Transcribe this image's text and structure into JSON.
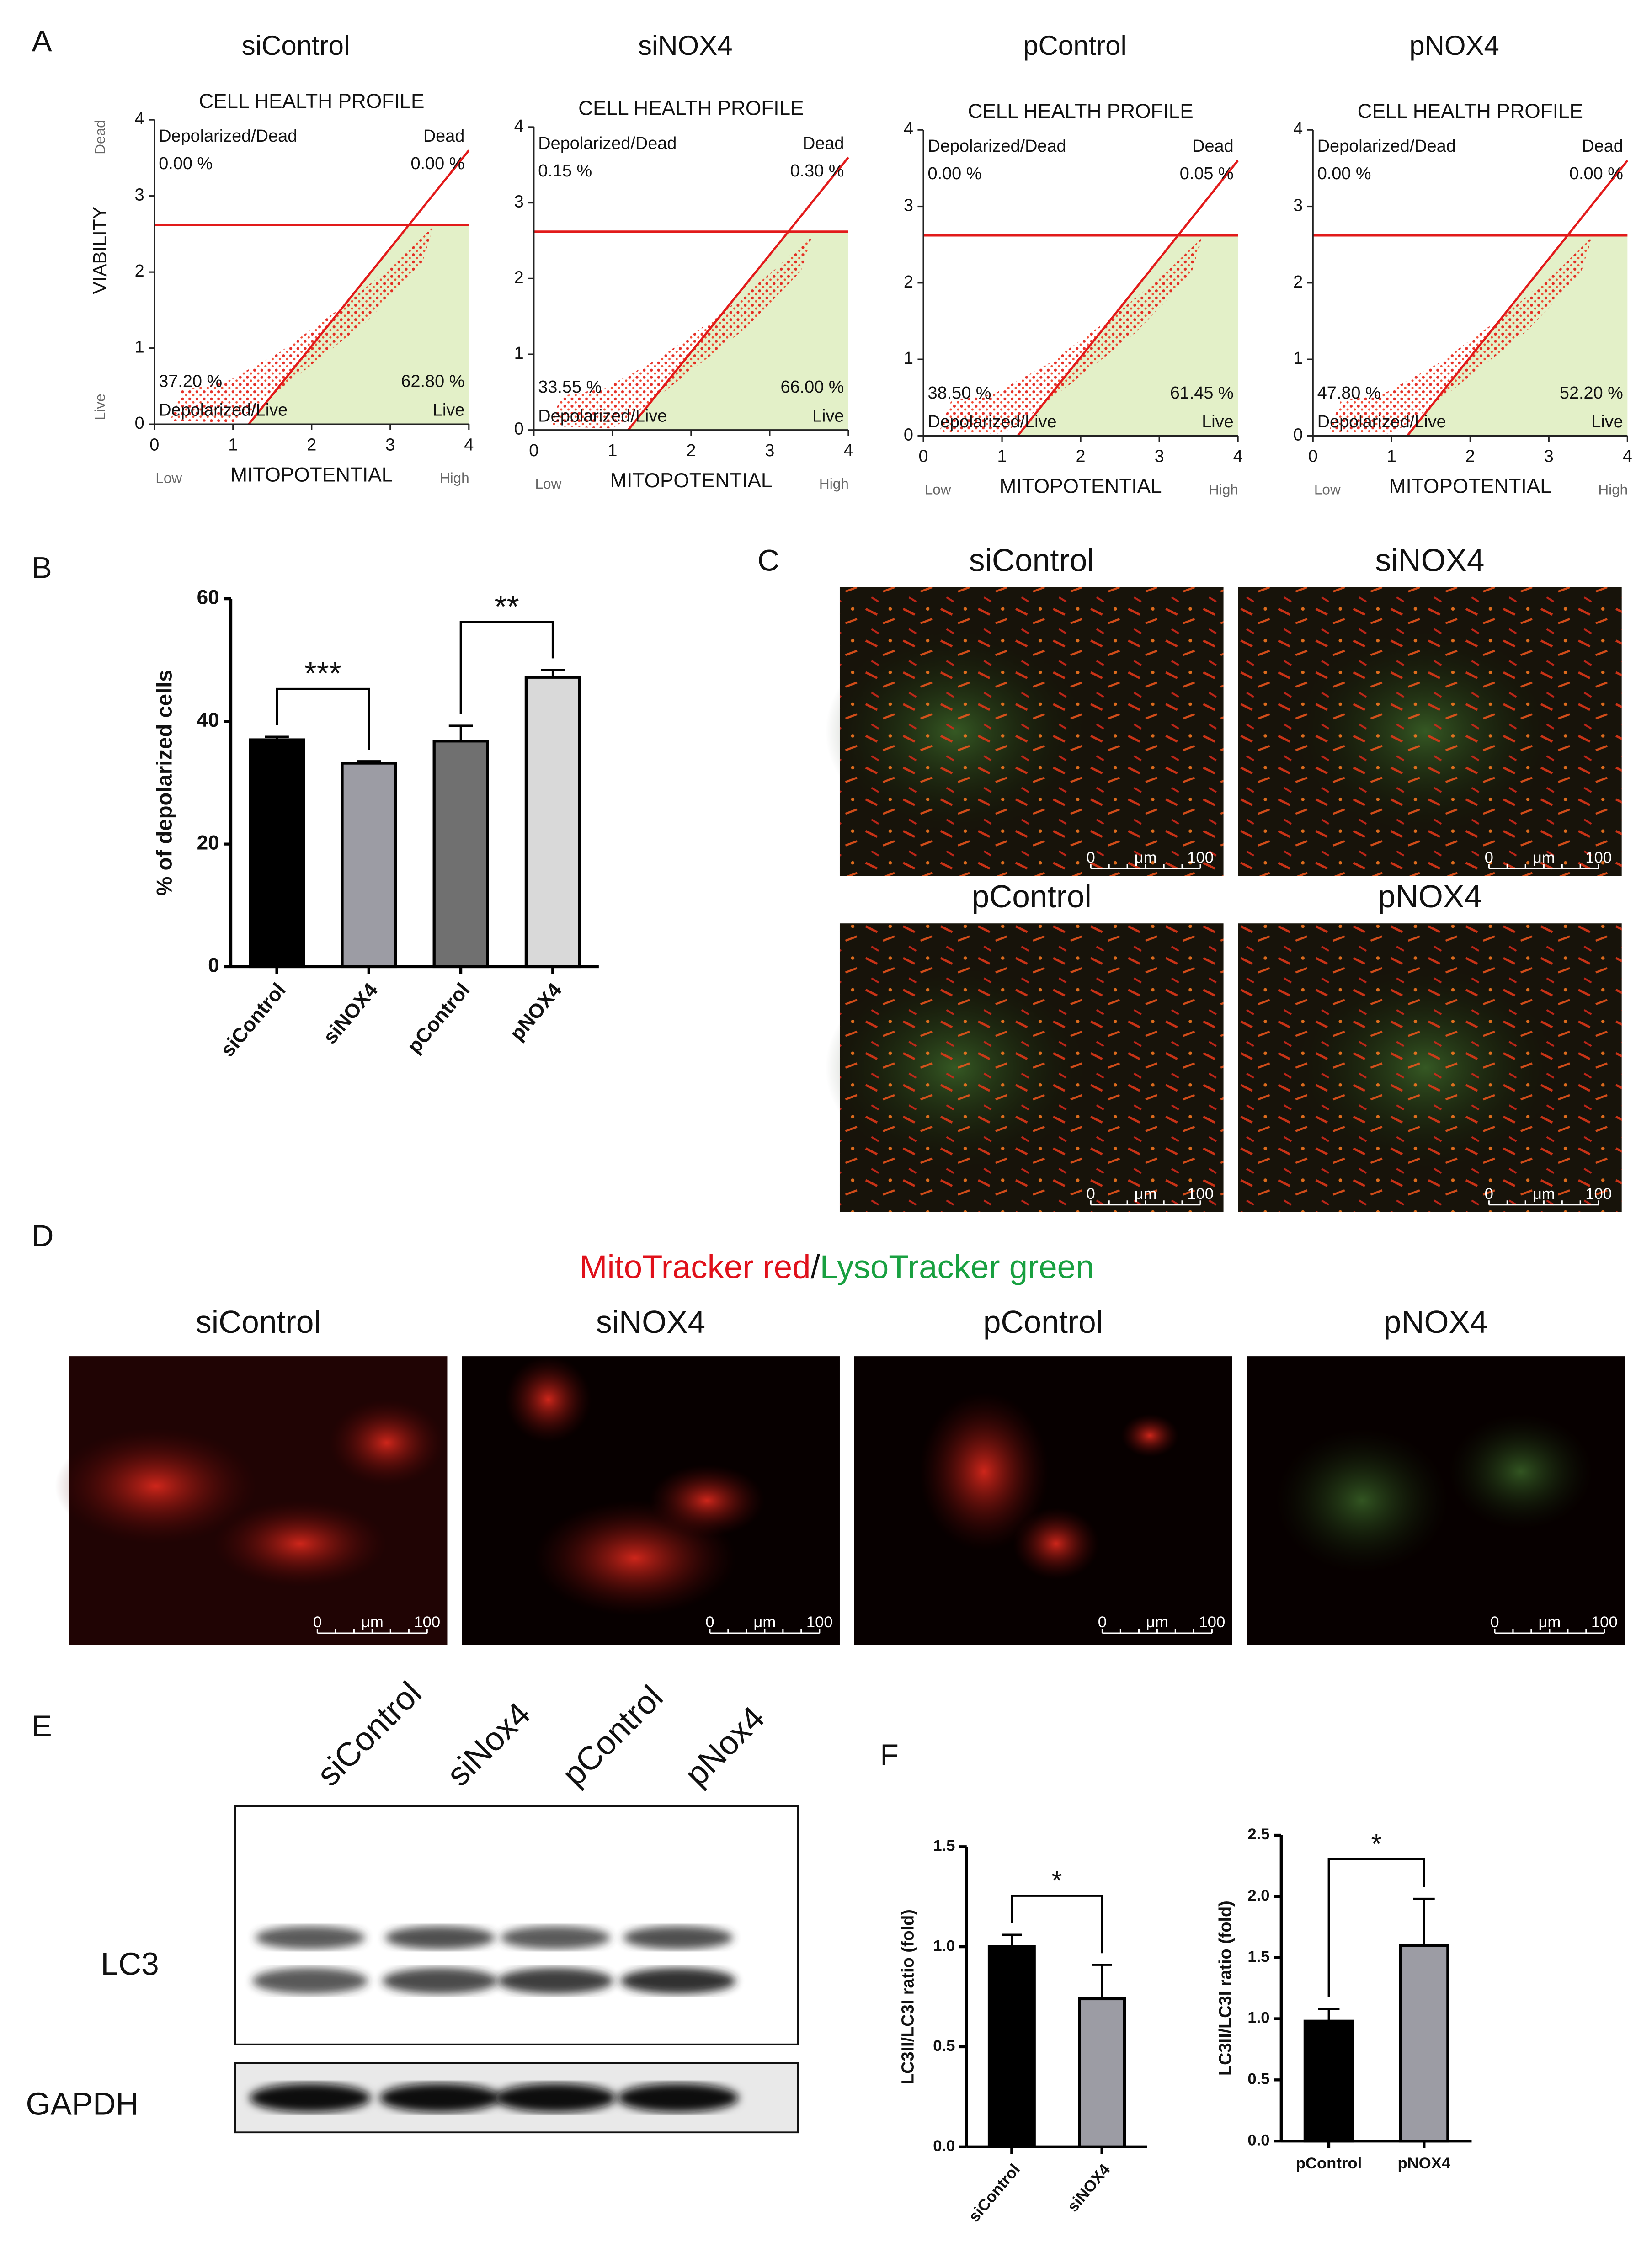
{
  "panel_labels": [
    "A",
    "B",
    "C",
    "D",
    "E",
    "F"
  ],
  "flow_plots": [
    {
      "column_title": "siControl",
      "plot_title": "CELL HEALTH PROFILE",
      "x_label": "MITOPOTENTIAL",
      "x_low": "Low",
      "x_high": "High",
      "y_label": "VIABILITY",
      "y_dead": "Dead",
      "y_live": "Live",
      "xlim": [
        0,
        4
      ],
      "ylim": [
        0,
        4
      ],
      "xticks": [
        0,
        1,
        2,
        3,
        4
      ],
      "yticks": [
        0,
        1,
        2,
        3,
        4
      ],
      "quadrants": [
        {
          "name": "Depolarized/Dead",
          "percent": "0.00 %"
        },
        {
          "name": "Dead",
          "percent": "0.00 %"
        },
        {
          "name": "Depolarized/Live",
          "percent": "37.20 %"
        },
        {
          "name": "Live",
          "percent": "62.80 %"
        }
      ]
    },
    {
      "column_title": "siNOX4",
      "plot_title": "CELL HEALTH PROFILE",
      "x_label": "MITOPOTENTIAL",
      "x_low": "Low",
      "x_high": "High",
      "xlim": [
        0,
        4
      ],
      "ylim": [
        0,
        4
      ],
      "xticks": [
        0,
        1,
        2,
        3,
        4
      ],
      "yticks": [
        0,
        1,
        2,
        3,
        4
      ],
      "quadrants": [
        {
          "name": "Depolarized/Dead",
          "percent": "0.15 %"
        },
        {
          "name": "Dead",
          "percent": "0.30 %"
        },
        {
          "name": "Depolarized/Live",
          "percent": "33.55 %"
        },
        {
          "name": "Live",
          "percent": "66.00 %"
        }
      ]
    },
    {
      "column_title": "pControl",
      "plot_title": "CELL HEALTH PROFILE",
      "x_label": "MITOPOTENTIAL",
      "x_low": "Low",
      "x_high": "High",
      "xlim": [
        0,
        4
      ],
      "ylim": [
        0,
        4
      ],
      "xticks": [
        0,
        1,
        2,
        3,
        4
      ],
      "yticks": [
        0,
        1,
        2,
        3,
        4
      ],
      "quadrants": [
        {
          "name": "Depolarized/Dead",
          "percent": "0.00 %"
        },
        {
          "name": "Dead",
          "percent": "0.05 %"
        },
        {
          "name": "Depolarized/Live",
          "percent": "38.50 %"
        },
        {
          "name": "Live",
          "percent": "61.45 %"
        }
      ]
    },
    {
      "column_title": "pNOX4",
      "plot_title": "CELL HEALTH PROFILE",
      "x_label": "MITOPOTENTIAL",
      "x_low": "Low",
      "x_high": "High",
      "xlim": [
        0,
        4
      ],
      "ylim": [
        0,
        4
      ],
      "xticks": [
        0,
        1,
        2,
        3,
        4
      ],
      "yticks": [
        0,
        1,
        2,
        3,
        4
      ],
      "quadrants": [
        {
          "name": "Depolarized/Dead",
          "percent": "0.00 %"
        },
        {
          "name": "Dead",
          "percent": "0.00 %"
        },
        {
          "name": "Depolarized/Live",
          "percent": "47.80 %"
        },
        {
          "name": "Live",
          "percent": "52.20 %"
        }
      ]
    }
  ],
  "scale_bar": {
    "start": "0",
    "unit": "μm",
    "end": "100"
  },
  "micrographs_c": {
    "labels": [
      "siControl",
      "siNOX4",
      "pControl",
      "pNOX4"
    ]
  },
  "micrographs_d": {
    "stain_mito": "MitoTracker red",
    "separator": "/",
    "stain_lyso": "LysoTracker green",
    "labels": [
      "siControl",
      "siNOX4",
      "pControl",
      "pNOX4"
    ]
  },
  "western_blot": {
    "lanes": [
      "siControl",
      "siNox4",
      "pControl",
      "pNox4"
    ],
    "rows": [
      "LC3",
      "GAPDH"
    ]
  },
  "chart_data": [
    {
      "type": "bar",
      "y_label": "% of depolarized cells",
      "categories": [
        "siControl",
        "siNOX4",
        "pControl",
        "pNOX4"
      ],
      "values": [
        37,
        33.2,
        36.8,
        47.2
      ],
      "errors": [
        0.5,
        0.3,
        2.5,
        1.2
      ],
      "colors": [
        "#000000",
        "#9c9ca4",
        "#707070",
        "#d9d9d9"
      ],
      "ylim": [
        0,
        60
      ],
      "yticks": [
        0,
        20,
        40,
        60
      ],
      "annotations": [
        {
          "text": "***",
          "between": [
            0,
            1
          ]
        },
        {
          "text": "**",
          "between": [
            2,
            3
          ]
        }
      ]
    },
    {
      "type": "bar",
      "y_label": "LC3II/LC3I ratio (fold)",
      "categories": [
        "siControl",
        "siNOX4"
      ],
      "values": [
        1.0,
        0.74
      ],
      "errors": [
        0.06,
        0.17
      ],
      "colors": [
        "#000000",
        "#9c9ca4"
      ],
      "ylim": [
        0,
        1.5
      ],
      "yticks": [
        {
          "value": 0,
          "label": "0.0"
        },
        0.5,
        {
          "value": 1,
          "label": "1.0"
        },
        1.5
      ],
      "annotations": [
        {
          "text": "*",
          "between": [
            0,
            1
          ]
        }
      ]
    },
    {
      "type": "bar",
      "y_label": "LC3II/LC3I ratio (fold)",
      "categories": [
        "pControl",
        "pNOX4"
      ],
      "values": [
        0.98,
        1.6
      ],
      "errors": [
        0.1,
        0.38
      ],
      "colors": [
        "#000000",
        "#9c9ca4"
      ],
      "ylim": [
        0,
        2.5
      ],
      "yticks": [
        {
          "value": 0,
          "label": "0.0"
        },
        0.5,
        {
          "value": 1,
          "label": "1.0"
        },
        1.5,
        {
          "value": 2,
          "label": "2.0"
        },
        2.5
      ],
      "annotations": [
        {
          "text": "*",
          "between": [
            0,
            1
          ]
        }
      ]
    }
  ]
}
